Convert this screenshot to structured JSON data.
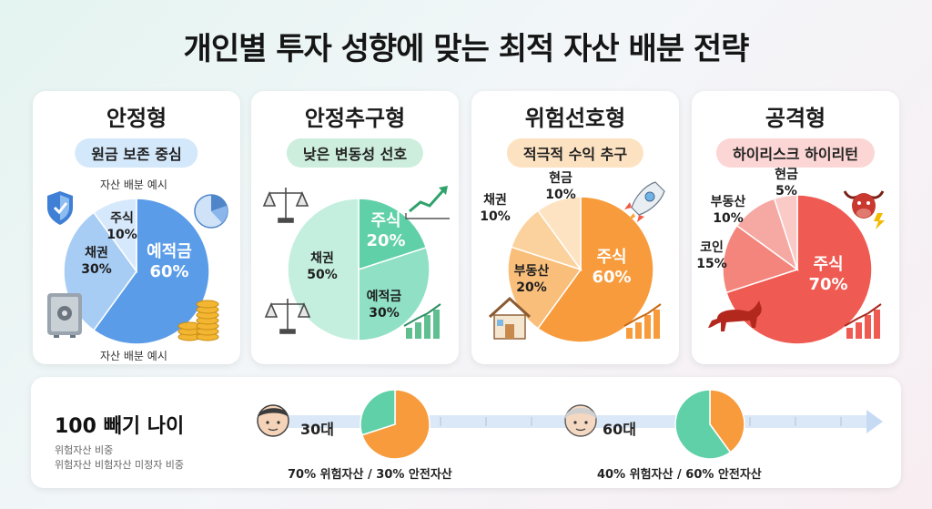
{
  "title": "개인별 투자 성향에 맞는 최적 자산 배분 전략",
  "colors": {
    "blue": "#5b9ce8",
    "blue_light": "#a8cdf4",
    "blue_pale": "#d6e8fb",
    "green": "#5fd0a8",
    "green_mid": "#8fe0c4",
    "green_light": "#c4efde",
    "orange": "#f79b3c",
    "orange_mid": "#f9bf7a",
    "orange_light": "#fbd29d",
    "orange_pale": "#fde3c2",
    "red": "#ef5b52",
    "red_mid": "#f3857c",
    "red_light": "#f6a8a2",
    "red_pale": "#f9cac6"
  },
  "chart_data": [
    {
      "type": "pie",
      "title": "안정형",
      "subtitle": "원금 보존 중심",
      "annotations": [
        "자산 배분 예시",
        "자산 배분 예시"
      ],
      "slices": [
        {
          "label": "예적금",
          "value": 60,
          "value_label": "60%",
          "color": "#5b9ce8"
        },
        {
          "label": "채권",
          "value": 30,
          "value_label": "30%",
          "color": "#a8cdf4"
        },
        {
          "label": "주식",
          "value": 10,
          "value_label": "10%",
          "color": "#d6e8fb"
        }
      ]
    },
    {
      "type": "pie",
      "title": "안정추구형",
      "subtitle": "낮은 변동성 선호",
      "slices": [
        {
          "label": "주식",
          "value": 20,
          "value_label": "20%",
          "color": "#5fd0a8"
        },
        {
          "label": "예적금",
          "value": 30,
          "value_label": "30%",
          "color": "#8fe0c4"
        },
        {
          "label": "채권",
          "value": 50,
          "value_label": "50%",
          "color": "#c4efde"
        }
      ]
    },
    {
      "type": "pie",
      "title": "위험선호형",
      "subtitle": "적극적 수익 추구",
      "slices": [
        {
          "label": "주식",
          "value": 60,
          "value_label": "60%",
          "color": "#f79b3c"
        },
        {
          "label": "부동산",
          "value": 20,
          "value_label": "20%",
          "color": "#f9bf7a"
        },
        {
          "label": "채권",
          "value": 10,
          "value_label": "10%",
          "color": "#fbd29d"
        },
        {
          "label": "현금",
          "value": 10,
          "value_label": "10%",
          "color": "#fde3c2"
        }
      ]
    },
    {
      "type": "pie",
      "title": "공격형",
      "subtitle": "하이리스크 하이리턴",
      "slices": [
        {
          "label": "주식",
          "value": 70,
          "value_label": "70%",
          "color": "#ef5b52"
        },
        {
          "label": "코인",
          "value": 15,
          "value_label": "15%",
          "color": "#f3857c"
        },
        {
          "label": "부동산",
          "value": 10,
          "value_label": "10%",
          "color": "#f6a8a2"
        },
        {
          "label": "현금",
          "value": 5,
          "value_label": "5%",
          "color": "#f9cac6"
        }
      ]
    },
    {
      "type": "pie",
      "title": "30대",
      "annotation": "70% 위험자산 / 30% 안전자산",
      "slices": [
        {
          "label": "위험자산",
          "value": 70,
          "color": "#f79b3c"
        },
        {
          "label": "안전자산",
          "value": 30,
          "color": "#5fd0a8"
        }
      ]
    },
    {
      "type": "pie",
      "title": "60대",
      "annotation": "40% 위험자산 / 60% 안전자산",
      "slices": [
        {
          "label": "위험자산",
          "value": 40,
          "color": "#f79b3c"
        },
        {
          "label": "안전자산",
          "value": 60,
          "color": "#5fd0a8"
        }
      ]
    }
  ],
  "rule": {
    "title": "100 빼기 나이",
    "subtitle_1": "위험자산 비중",
    "subtitle_2": "위험자산 비험자산 미정자 비중"
  },
  "icons": [
    "shield-icon",
    "safe-icon",
    "coins-icon",
    "mini-pie-icon",
    "scale-icon",
    "trend-chart-icon",
    "rocket-icon",
    "house-icon",
    "bar-chart-icon",
    "bull-icon",
    "bitcoin-icon",
    "person-young-icon",
    "person-old-icon",
    "arrow-right-icon"
  ]
}
